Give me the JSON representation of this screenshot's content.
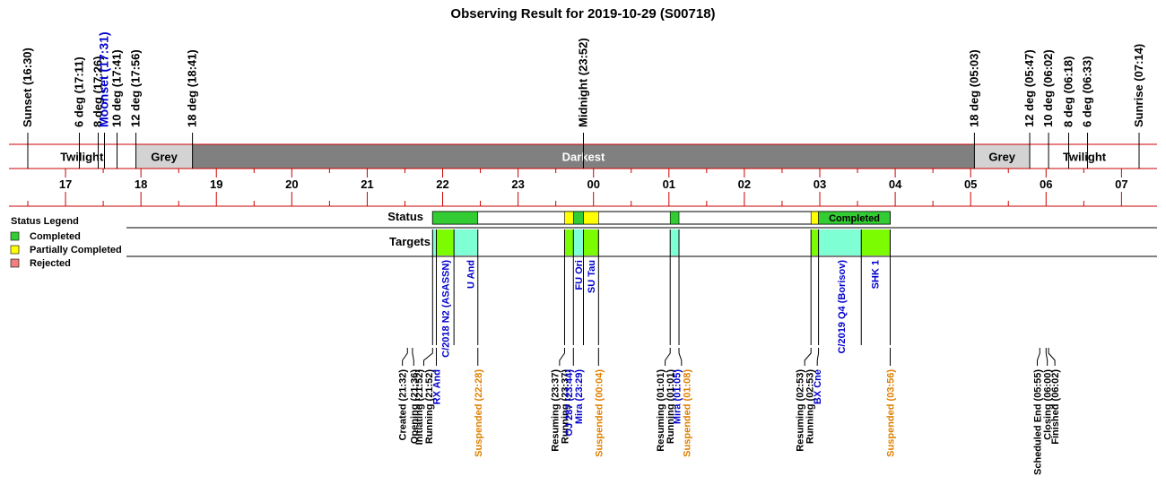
{
  "chart_data": {
    "type": "timeline",
    "title": "Observing Result for 2019-10-29 (S00718)",
    "time_range": [
      "16:30",
      "07:14"
    ],
    "hour_ticks": [
      "17",
      "18",
      "19",
      "20",
      "21",
      "22",
      "23",
      "00",
      "01",
      "02",
      "03",
      "04",
      "05",
      "06",
      "07"
    ],
    "sky_events": [
      {
        "label": "Sunset (16:30)",
        "time": "16:30",
        "color": "#000000"
      },
      {
        "label": "6 deg (17:11)",
        "time": "17:11",
        "color": "#000000"
      },
      {
        "label": "8 deg (17:26)",
        "time": "17:26",
        "color": "#000000"
      },
      {
        "label": "Moonset (17:31)",
        "time": "17:31",
        "color": "#0000cc"
      },
      {
        "label": "10 deg (17:41)",
        "time": "17:41",
        "color": "#000000"
      },
      {
        "label": "12 deg (17:56)",
        "time": "17:56",
        "color": "#000000"
      },
      {
        "label": "18 deg (18:41)",
        "time": "18:41",
        "color": "#000000"
      },
      {
        "label": "Midnight (23:52)",
        "time": "23:52",
        "color": "#000000"
      },
      {
        "label": "18 deg (05:03)",
        "time": "05:03",
        "color": "#000000"
      },
      {
        "label": "12 deg (05:47)",
        "time": "05:47",
        "color": "#000000"
      },
      {
        "label": "10 deg (06:02)",
        "time": "06:02",
        "color": "#000000"
      },
      {
        "label": "8 deg (06:18)",
        "time": "06:18",
        "color": "#000000"
      },
      {
        "label": "6 deg (06:33)",
        "time": "06:33",
        "color": "#000000"
      },
      {
        "label": "Sunrise (07:14)",
        "time": "07:14",
        "color": "#000000"
      }
    ],
    "sky_bands": [
      {
        "label": "Twilight",
        "start": "16:30",
        "end": "17:56",
        "color": "#ffffff",
        "text_color": "#000000"
      },
      {
        "label": "Grey",
        "start": "17:56",
        "end": "18:41",
        "color": "#d3d3d3",
        "text_color": "#000000"
      },
      {
        "label": "Darkest",
        "start": "18:41",
        "end": "05:03",
        "color": "#808080",
        "text_color": "#ffffff"
      },
      {
        "label": "Grey",
        "start": "05:03",
        "end": "05:47",
        "color": "#d3d3d3",
        "text_color": "#000000"
      },
      {
        "label": "Twilight",
        "start": "05:47",
        "end": "07:14",
        "color": "#ffffff",
        "text_color": "#000000"
      }
    ],
    "status_row_label": "Status",
    "targets_row_label": "Targets",
    "status_segments": [
      {
        "start": "21:52",
        "end": "22:28",
        "status": "Completed"
      },
      {
        "start": "23:37",
        "end": "23:44",
        "status": "Partially Completed"
      },
      {
        "start": "23:44",
        "end": "23:52",
        "status": "Completed"
      },
      {
        "start": "23:52",
        "end": "00:04",
        "status": "Partially Completed"
      },
      {
        "start": "01:01",
        "end": "01:08",
        "status": "Completed"
      },
      {
        "start": "02:53",
        "end": "02:59",
        "status": "Partially Completed"
      },
      {
        "start": "02:59",
        "end": "03:56",
        "status": "Completed",
        "label": "Completed"
      }
    ],
    "targets": [
      {
        "name": "RX And",
        "start": "21:52",
        "end": "21:55",
        "color": "#7fffd4"
      },
      {
        "name": "C/2018 N2 (ASASSN)",
        "start": "21:55",
        "end": "22:09",
        "color": "#7cfc00"
      },
      {
        "name": "U And",
        "start": "22:09",
        "end": "22:28",
        "color": "#7fffd4"
      },
      {
        "name": "OJ 287",
        "start": "23:37",
        "end": "23:44",
        "color": "#7cfc00"
      },
      {
        "name": "FU Ori",
        "start": "23:44",
        "end": "23:52",
        "color": "#7fffd4"
      },
      {
        "name": "SU Tau",
        "start": "23:52",
        "end": "00:04",
        "color": "#7cfc00"
      },
      {
        "name": "Mira",
        "start": "01:01",
        "end": "01:08",
        "color": "#7fffd4"
      },
      {
        "name": "BX Cne",
        "start": "02:53",
        "end": "02:59",
        "color": "#7cfc00"
      },
      {
        "name": "C/2019 Q4 (Borisov)",
        "start": "02:59",
        "end": "03:33",
        "color": "#7fffd4"
      },
      {
        "name": "SHK 1",
        "start": "03:33",
        "end": "03:56",
        "color": "#7cfc00"
      }
    ],
    "target_labels": [
      {
        "text": "C/2018 N2 (ASASSN)",
        "time": "22:02"
      },
      {
        "text": "U And",
        "time": "22:22"
      },
      {
        "text": "FU Ori",
        "time": "23:48"
      },
      {
        "text": "SU Tau",
        "time": "23:58"
      },
      {
        "text": "C/2019 Q4 (Borisov)",
        "time": "03:17"
      },
      {
        "text": "SHK 1",
        "time": "03:44"
      }
    ],
    "event_groups": [
      {
        "time": "21:32",
        "offset_time": "21:28",
        "lines": [
          {
            "text": "Created (21:32)",
            "color": "#000000"
          }
        ]
      },
      {
        "time": "21:36",
        "offset_time": "21:37",
        "lines": [
          {
            "text": "Opening (21:36)",
            "color": "#000000"
          }
        ]
      },
      {
        "time": "21:52",
        "offset_time": "21:45",
        "lines": [
          {
            "text": "Initiating (21:52)",
            "color": "#000000"
          },
          {
            "text": "Running (21:52)",
            "color": "#000000"
          }
        ]
      },
      {
        "time": "21:55",
        "offset_time": "21:55",
        "lines": [
          {
            "text": "RX And",
            "color": "#0000cc"
          }
        ]
      },
      {
        "time": "22:28",
        "offset_time": "22:28",
        "lines": [
          {
            "text": "Suspended (22:28)",
            "color": "#e08000"
          }
        ]
      },
      {
        "time": "23:37",
        "offset_time": "23:33",
        "lines": [
          {
            "text": "Resuming (23:37)",
            "color": "#000000"
          },
          {
            "text": "Running (23:37)",
            "color": "#000000"
          }
        ]
      },
      {
        "time": "23:44",
        "offset_time": "23:44",
        "lines": [
          {
            "text": "OJ 287 (23:44)",
            "color": "#0000cc"
          },
          {
            "text": "Mira (23:29)",
            "color": "#0000cc"
          }
        ]
      },
      {
        "time": "00:04",
        "offset_time": "00:04",
        "lines": [
          {
            "text": "Suspended (00:04)",
            "color": "#e08000"
          }
        ]
      },
      {
        "time": "01:01",
        "offset_time": "00:57",
        "lines": [
          {
            "text": "Resuming (01:01)",
            "color": "#000000"
          },
          {
            "text": "Running (01:01)",
            "color": "#000000"
          }
        ]
      },
      {
        "time": "01:08",
        "offset_time": "01:10",
        "lines": [
          {
            "text": "Mira (01:05)",
            "color": "#0000cc"
          },
          {
            "text": "Suspended (01:08)",
            "color": "#e08000"
          }
        ]
      },
      {
        "time": "02:53",
        "offset_time": "02:48",
        "lines": [
          {
            "text": "Resuming (02:53)",
            "color": "#000000"
          },
          {
            "text": "Running (02:53)",
            "color": "#000000"
          }
        ]
      },
      {
        "time": "02:59",
        "offset_time": "02:58",
        "lines": [
          {
            "text": "BX Cne",
            "color": "#0000cc"
          }
        ]
      },
      {
        "time": "03:56",
        "offset_time": "03:56",
        "lines": [
          {
            "text": "Suspended (03:56)",
            "color": "#e08000"
          }
        ]
      },
      {
        "time": "05:55",
        "offset_time": "05:53",
        "lines": [
          {
            "text": "Scheduled End (05:55)",
            "color": "#000000"
          }
        ]
      },
      {
        "time": "06:00",
        "offset_time": "06:01",
        "lines": [
          {
            "text": "Closing (06:00)",
            "color": "#000000"
          }
        ]
      },
      {
        "time": "06:02",
        "offset_time": "06:07",
        "lines": [
          {
            "text": "Finished (06:02)",
            "color": "#000000"
          }
        ]
      }
    ],
    "legend": {
      "title": "Status Legend",
      "placement": "left",
      "items": [
        {
          "label": "Completed",
          "color": "#33cc33"
        },
        {
          "label": "Partially Completed",
          "color": "#ffff00"
        },
        {
          "label": "Rejected",
          "color": "#f08080"
        }
      ]
    },
    "colors": {
      "completed": "#33cc33",
      "partial": "#ffff00",
      "band_border": "#cc0000"
    }
  }
}
